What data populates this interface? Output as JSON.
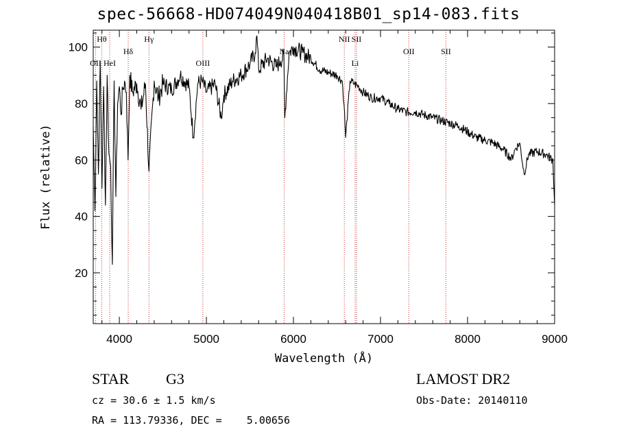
{
  "chart_data": {
    "type": "line",
    "title": "spec-56668-HD074049N040418B01_sp14-083.fits",
    "xlabel": "Wavelength (Å)",
    "ylabel": "Flux (relative)",
    "xlim": [
      3700,
      9000
    ],
    "ylim": [
      2,
      106
    ],
    "xticks": [
      4000,
      5000,
      6000,
      7000,
      8000,
      9000
    ],
    "yticks": [
      20,
      40,
      60,
      80,
      100
    ],
    "grid": false,
    "line_color": "#000000",
    "marker_color": "#c03030",
    "series": [
      {
        "x": [
          3700,
          3720,
          3740,
          3760,
          3780,
          3800,
          3820,
          3840,
          3860,
          3880,
          3900,
          3920,
          3940,
          3960,
          3980,
          4000,
          4020,
          4040,
          4060,
          4080,
          4100,
          4120,
          4150,
          4200,
          4250,
          4300,
          4340,
          4400,
          4450,
          4500,
          4600,
          4700,
          4800,
          4850,
          4900,
          4950,
          5000,
          5100,
          5170,
          5200,
          5300,
          5400,
          5500,
          5560,
          5580,
          5600,
          5700,
          5800,
          5850,
          5890,
          5900,
          5950,
          6000,
          6100,
          6200,
          6300,
          6400,
          6500,
          6560,
          6580,
          6600,
          6650,
          6700,
          6750,
          6800,
          6900,
          7000,
          7100,
          7200,
          7300,
          7400,
          7500,
          7600,
          7700,
          7800,
          7900,
          8000,
          8100,
          8200,
          8300,
          8400,
          8490,
          8500,
          8550,
          8600,
          8650,
          8700,
          8800,
          8900,
          8980,
          9000
        ],
        "y": [
          72,
          42,
          88,
          55,
          95,
          50,
          86,
          44,
          90,
          62,
          58,
          23,
          88,
          47,
          80,
          86,
          76,
          85,
          88,
          84,
          60,
          90,
          84,
          87,
          78,
          87,
          56,
          88,
          82,
          87,
          85,
          90,
          86,
          68,
          87,
          88,
          84,
          87,
          75,
          83,
          88,
          90,
          94,
          98,
          104,
          92,
          96,
          93,
          95,
          97,
          75,
          98,
          100,
          98,
          96,
          92,
          91,
          90,
          88,
          80,
          68,
          88,
          87,
          86,
          84,
          82,
          82,
          80,
          78,
          77,
          77,
          76,
          75,
          74,
          73,
          72,
          70,
          68,
          67,
          66,
          64,
          61,
          60,
          64,
          66,
          55,
          62,
          63,
          62,
          60,
          44
        ]
      }
    ],
    "line_markers": [
      {
        "name": "OII",
        "x": 3727,
        "row": 2
      },
      {
        "name": "Hθ",
        "x": 3798,
        "row": 0
      },
      {
        "name": "HeI",
        "x": 3889,
        "row": 2
      },
      {
        "name": "Hδ",
        "x": 4102,
        "row": 1
      },
      {
        "name": "Hγ",
        "x": 4340,
        "row": 0
      },
      {
        "name": "OIII",
        "x": 4959,
        "row": 2
      },
      {
        "name": "Na",
        "x": 5893,
        "row": 1
      },
      {
        "name": "NII",
        "x": 6584,
        "row": 0
      },
      {
        "name": "Li",
        "x": 6708,
        "row": 2
      },
      {
        "name": "SII",
        "x": 6724,
        "row": 0
      },
      {
        "name": "OII",
        "x": 7325,
        "row": 1
      },
      {
        "name": "SII",
        "x": 7751,
        "row": 1
      }
    ]
  },
  "info": {
    "object_type": "STAR",
    "spectral_class": "G3",
    "survey": "LAMOST DR2",
    "cz_text": "cz = 30.6 ± 1.5 km/s",
    "obs_date_text": "Obs-Date: 20140110",
    "coords_text": "RA = 113.79336, DEC =    5.00656"
  }
}
